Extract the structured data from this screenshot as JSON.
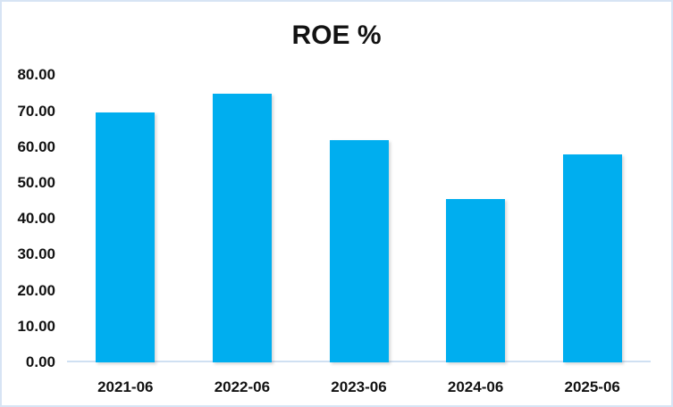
{
  "chart_data": {
    "type": "bar",
    "title": "ROE %",
    "categories": [
      "2021-06",
      "2022-06",
      "2023-06",
      "2024-06",
      "2025-06"
    ],
    "values": [
      69.7,
      74.9,
      62.0,
      45.4,
      58.0
    ],
    "xlabel": "",
    "ylabel": "",
    "ylim": [
      0,
      80
    ],
    "ytick_step": 10,
    "ytick_labels": [
      "0.00",
      "10.00",
      "20.00",
      "30.00",
      "40.00",
      "50.00",
      "60.00",
      "70.00",
      "80.00"
    ],
    "grid": false,
    "legend": false,
    "bar_color": "#00AEEF",
    "axis_line_color": "#CFE0F2",
    "frame_border_color": "#D7E4F4",
    "text_color": "#121212",
    "background_color": "#FFFFFF"
  }
}
